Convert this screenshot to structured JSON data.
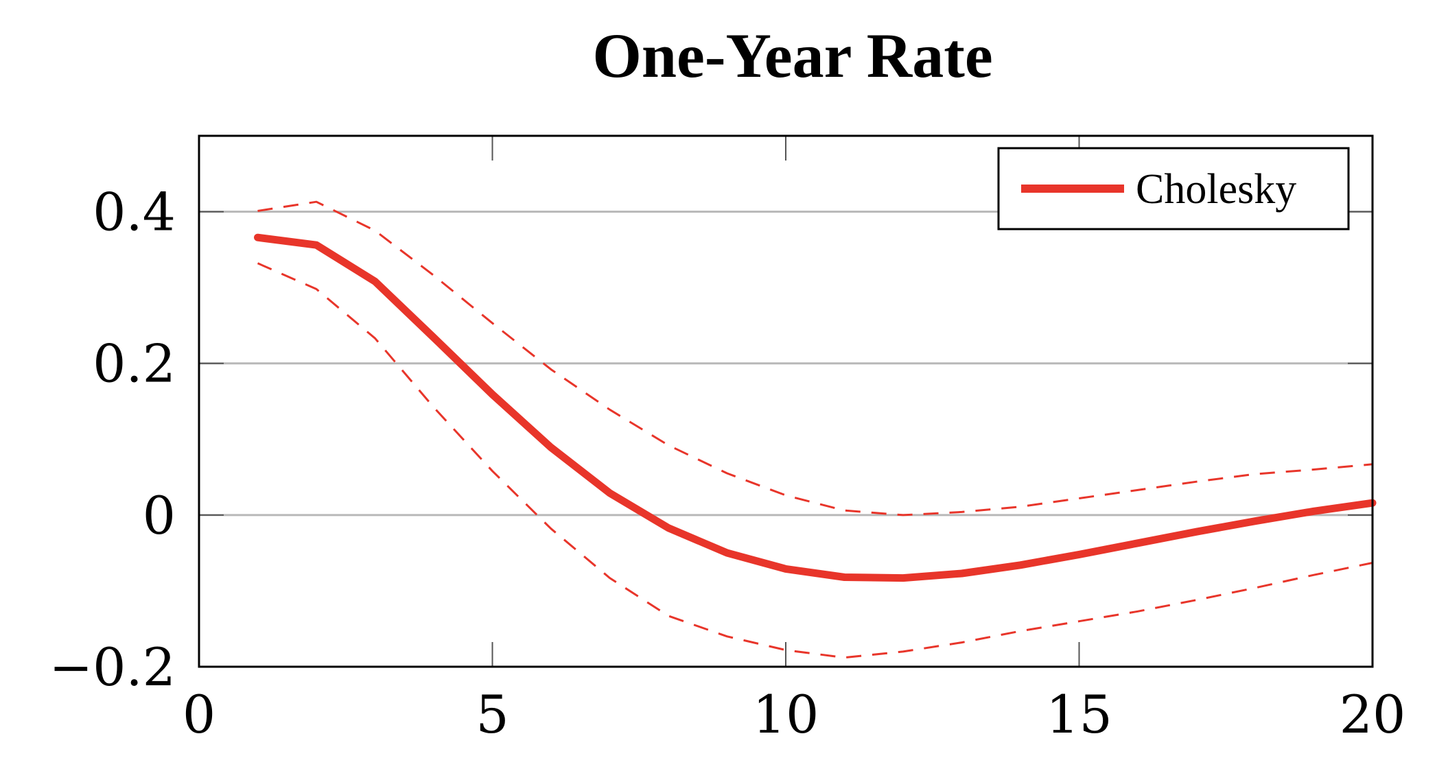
{
  "chart_data": {
    "type": "line",
    "title": "One-Year Rate",
    "xlabel": "",
    "ylabel": "",
    "xlim": [
      0,
      20
    ],
    "ylim": [
      -0.2,
      0.5
    ],
    "x_ticks": [
      0,
      5,
      10,
      15,
      20
    ],
    "x_tick_labels": [
      "0",
      "5",
      "10",
      "15",
      "20"
    ],
    "y_ticks": [
      -0.2,
      0,
      0.2,
      0.4
    ],
    "y_tick_labels": [
      "−0.2",
      "0",
      "0.2",
      "0.4"
    ],
    "grid": "horizontal",
    "legend_position": "top-right",
    "series": [
      {
        "name": "Cholesky",
        "role": "point-estimate",
        "style": "solid",
        "color": "#e8352a",
        "x": [
          1,
          2,
          3,
          4,
          5,
          6,
          7,
          8,
          9,
          10,
          11,
          12,
          13,
          14,
          15,
          16,
          17,
          18,
          19,
          20
        ],
        "y": [
          0.366,
          0.356,
          0.308,
          0.234,
          0.159,
          0.089,
          0.029,
          -0.017,
          -0.05,
          -0.071,
          -0.082,
          -0.083,
          -0.077,
          -0.066,
          -0.052,
          -0.037,
          -0.022,
          -0.008,
          0.005,
          0.016
        ]
      },
      {
        "role": "upper-band",
        "style": "dashed",
        "color": "#e8352a",
        "x": [
          1,
          2,
          3,
          4,
          5,
          6,
          7,
          8,
          9,
          10,
          11,
          12,
          13,
          14,
          15,
          16,
          17,
          18,
          19,
          20
        ],
        "y": [
          0.401,
          0.413,
          0.375,
          0.316,
          0.253,
          0.192,
          0.139,
          0.092,
          0.055,
          0.026,
          0.006,
          0.0,
          0.004,
          0.011,
          0.022,
          0.033,
          0.044,
          0.054,
          0.06,
          0.067
        ]
      },
      {
        "role": "lower-band",
        "style": "dashed",
        "color": "#e8352a",
        "x": [
          1,
          2,
          3,
          4,
          5,
          6,
          7,
          8,
          9,
          10,
          11,
          12,
          13,
          14,
          15,
          16,
          17,
          18,
          19,
          20
        ],
        "y": [
          0.332,
          0.298,
          0.233,
          0.142,
          0.058,
          -0.018,
          -0.083,
          -0.133,
          -0.16,
          -0.178,
          -0.188,
          -0.18,
          -0.168,
          -0.153,
          -0.14,
          -0.127,
          -0.112,
          -0.096,
          -0.079,
          -0.063
        ]
      }
    ]
  }
}
